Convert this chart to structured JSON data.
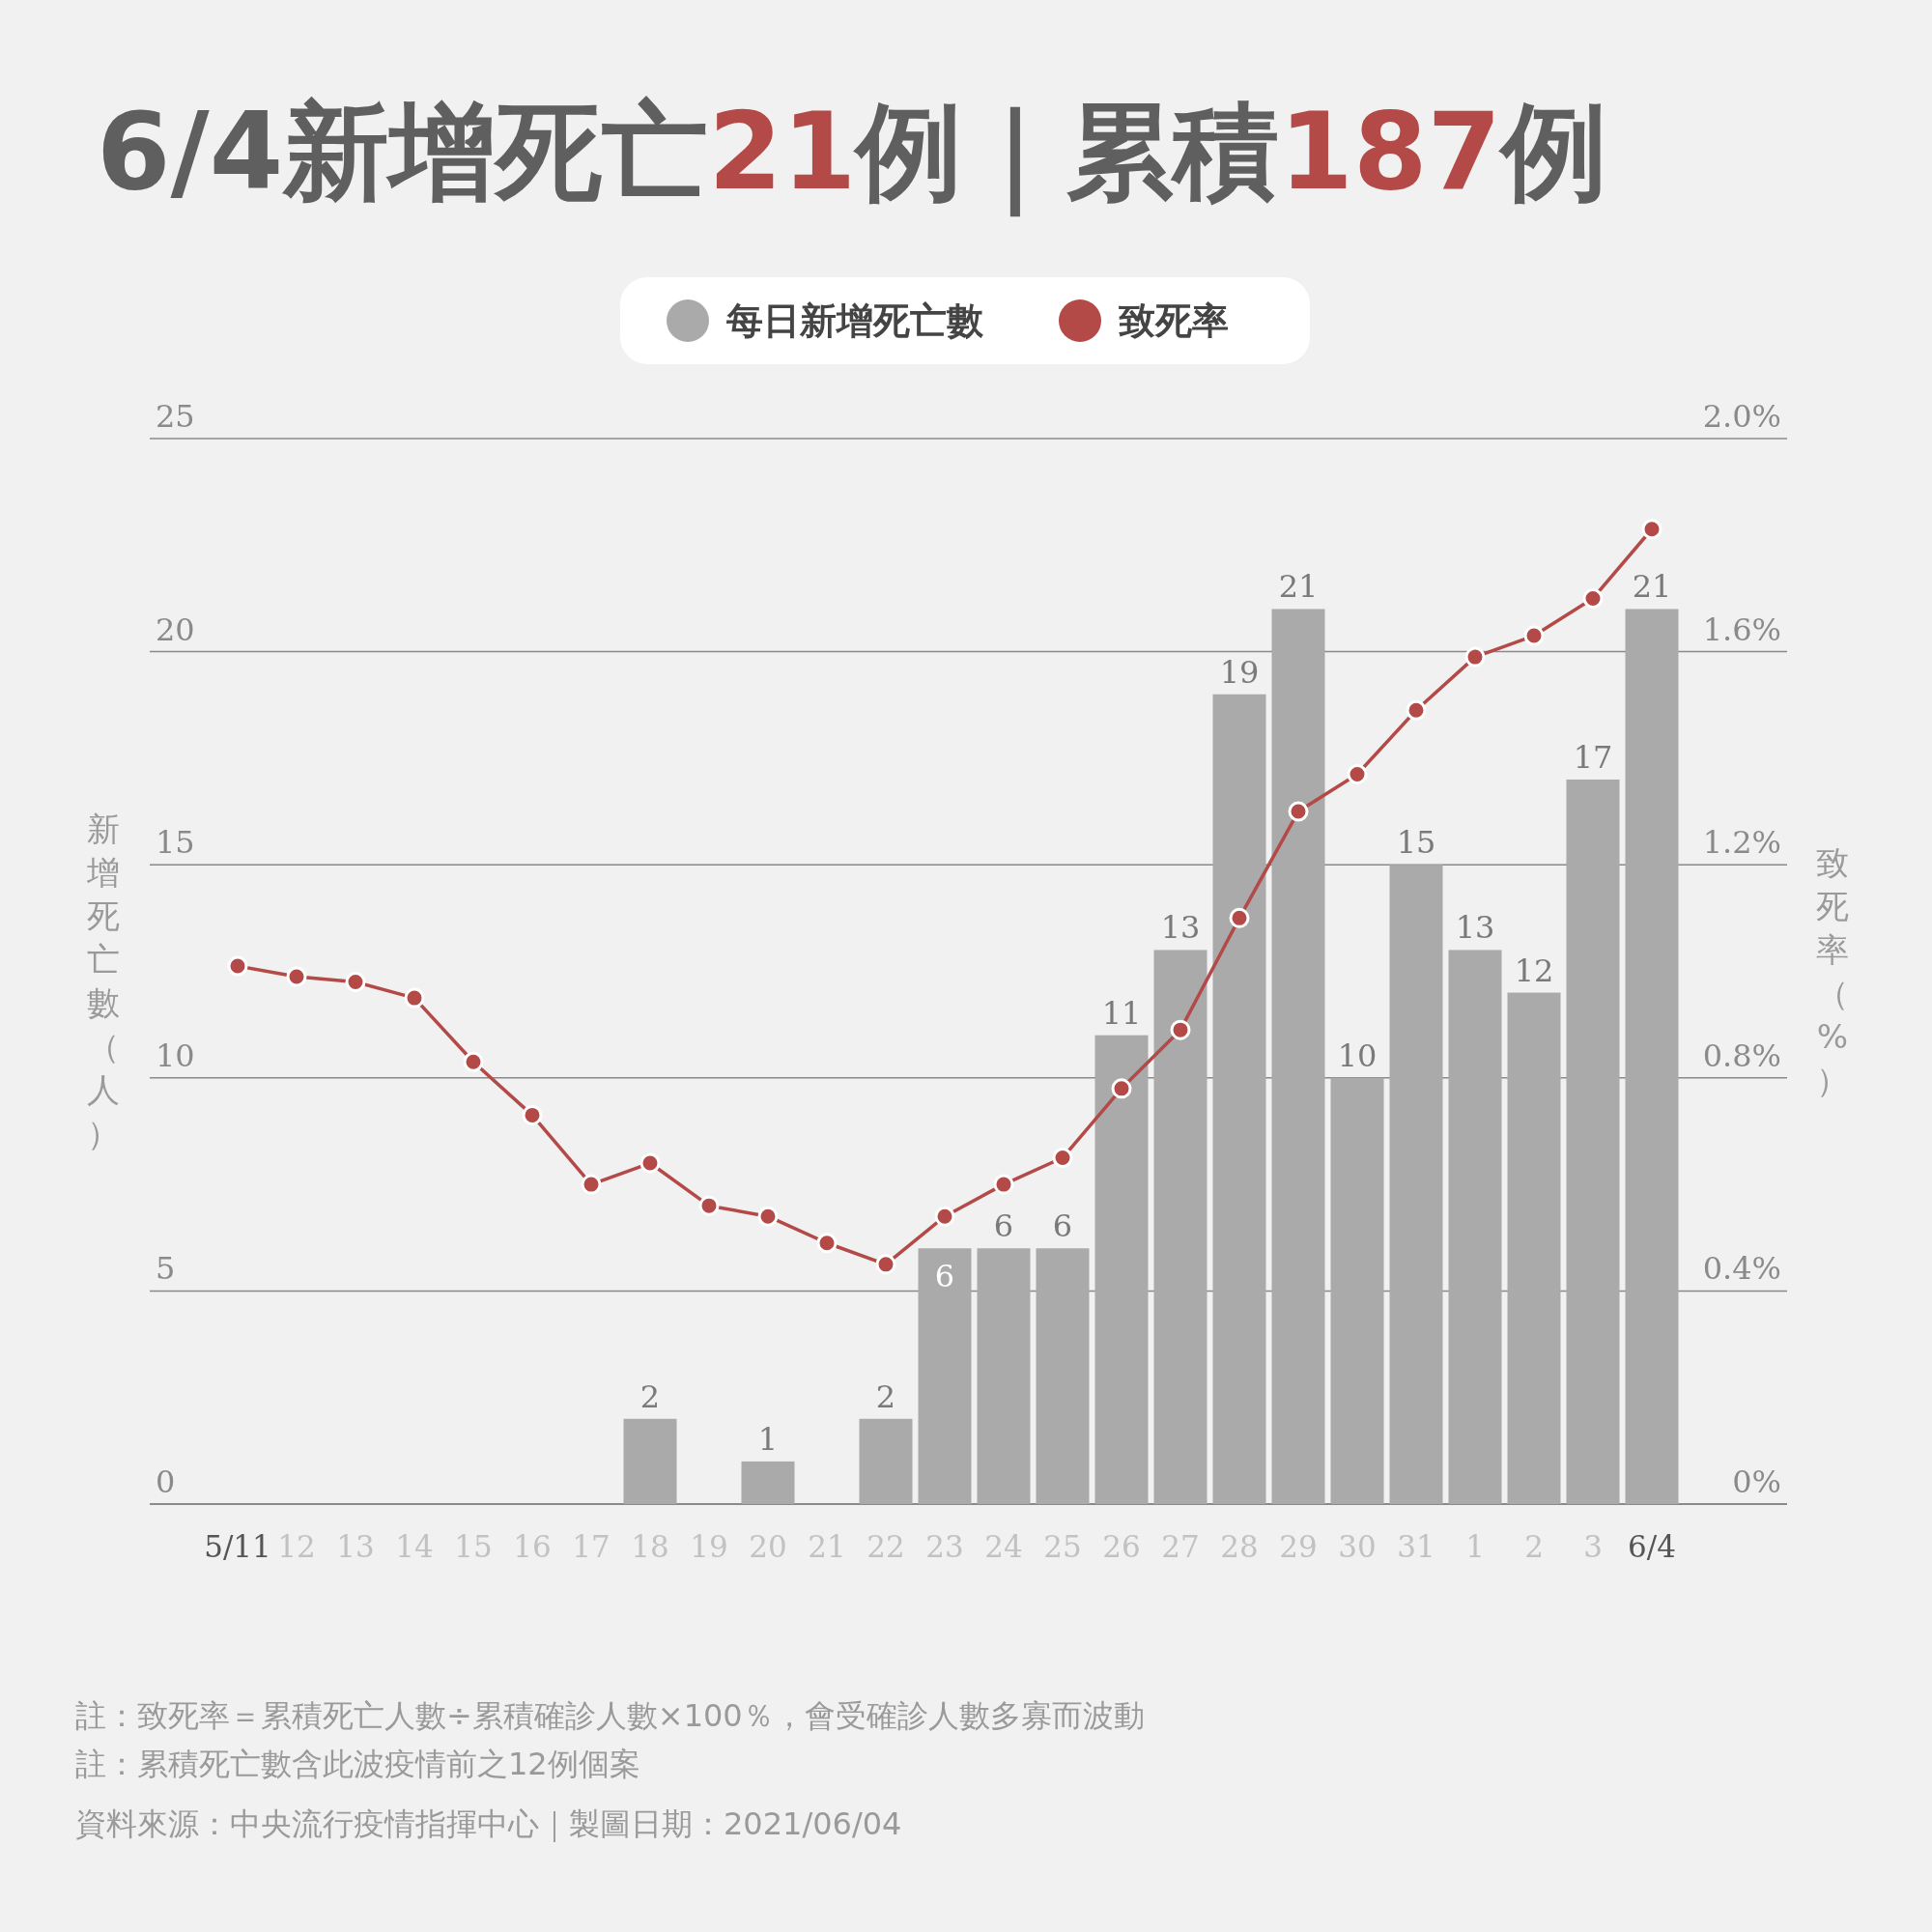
{
  "chart_data": {
    "type": "bar",
    "title": "6/4新增死亡21例｜累積187例",
    "categories": [
      "5/11",
      "12",
      "13",
      "14",
      "15",
      "16",
      "17",
      "18",
      "19",
      "20",
      "21",
      "22",
      "23",
      "24",
      "25",
      "26",
      "27",
      "28",
      "29",
      "30",
      "31",
      "1",
      "2",
      "3",
      "6/4"
    ],
    "series": [
      {
        "name": "每日新增死亡數",
        "color": "#aaaaaa",
        "values": [
          0,
          0,
          0,
          0,
          0,
          0,
          0,
          2,
          0,
          1,
          0,
          2,
          6,
          6,
          6,
          11,
          13,
          19,
          21,
          10,
          15,
          13,
          12,
          17,
          21
        ],
        "value_labels": [
          null,
          null,
          null,
          null,
          null,
          null,
          null,
          "2",
          null,
          "1",
          null,
          "2",
          "6",
          "6",
          "6",
          "11",
          "13",
          "19",
          "21",
          "10",
          "15",
          "13",
          "12",
          "17",
          "21"
        ]
      },
      {
        "name": "致死率",
        "type": "line",
        "axis": "y2",
        "color": "#b34a48",
        "values": [
          1.01,
          0.99,
          0.98,
          0.95,
          0.83,
          0.73,
          0.6,
          0.64,
          0.56,
          0.54,
          0.49,
          0.45,
          0.54,
          0.6,
          0.65,
          0.78,
          0.89,
          1.1,
          1.3,
          1.37,
          1.49,
          1.59,
          1.63,
          1.7,
          1.83
        ]
      }
    ],
    "ylabel": "新增死亡數（人）",
    "y2label": "致死率（%）",
    "ylim": [
      0,
      25
    ],
    "yticks": [
      0,
      5,
      10,
      15,
      20,
      25
    ],
    "y2lim": [
      0,
      2
    ],
    "y2ticks": [
      {
        "value": 0,
        "label": "0%"
      },
      {
        "value": 0.4,
        "label": "0.4%"
      },
      {
        "value": 0.8,
        "label": "0.8%"
      },
      {
        "value": 1.2,
        "label": "1.2%"
      },
      {
        "value": 1.6,
        "label": "1.6%"
      },
      {
        "value": 2,
        "label": "2.0%"
      }
    ],
    "grid": "y",
    "legend": "top",
    "marker": "circle",
    "line_style": "solid",
    "annotations": [
      "註：致死率＝累積死亡人數÷累積確診人數×100％，會受確診人數多寡而波動",
      "註：累積死亡數含此波疫情前之12例個案",
      "資料來源：中央流行疫情指揮中心｜製圖日期：2021/06/04"
    ]
  }
}
